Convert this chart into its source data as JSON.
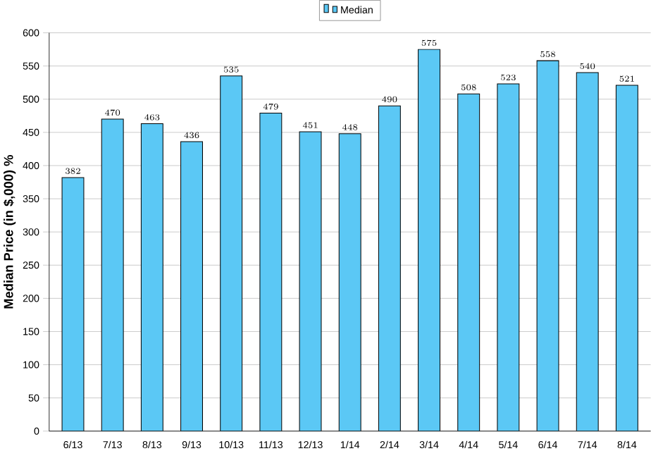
{
  "chart_data": {
    "type": "bar",
    "ylabel": "Median Price (in $,000) %",
    "categories": [
      "6/13",
      "7/13",
      "8/13",
      "9/13",
      "10/13",
      "11/13",
      "12/13",
      "1/14",
      "2/14",
      "3/14",
      "4/14",
      "5/14",
      "6/14",
      "7/14",
      "8/14"
    ],
    "series": [
      {
        "name": "Median",
        "color": "#5bc8f5",
        "values": [
          382,
          470,
          463,
          436,
          535,
          479,
          451,
          448,
          490,
          575,
          508,
          523,
          558,
          540,
          521
        ]
      }
    ],
    "ylim": [
      0,
      600
    ],
    "yticks": [
      0,
      50,
      100,
      150,
      200,
      250,
      300,
      350,
      400,
      450,
      500,
      550,
      600
    ],
    "grid": "y",
    "legend": "top",
    "data_labels": true
  }
}
